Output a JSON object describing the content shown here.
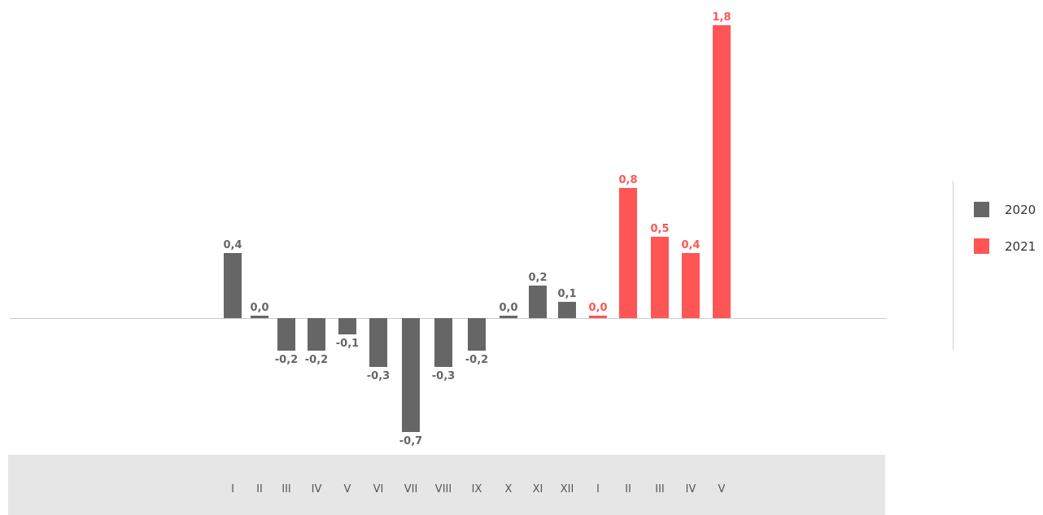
{
  "chart_data": {
    "type": "bar",
    "categories": [
      "I",
      "II",
      "III",
      "IV",
      "V",
      "VI",
      "VII",
      "VIII",
      "IX",
      "X",
      "XI",
      "XII",
      "I",
      "II",
      "III",
      "IV",
      "V"
    ],
    "series": [
      {
        "name": "2020",
        "color": "#666666",
        "values": [
          0.4,
          0.0,
          -0.2,
          -0.2,
          -0.1,
          -0.3,
          -0.7,
          -0.3,
          -0.2,
          0.0,
          0.2,
          0.1,
          null,
          null,
          null,
          null,
          null
        ]
      },
      {
        "name": "2021",
        "color": "#ff5555",
        "values": [
          null,
          null,
          null,
          null,
          null,
          null,
          null,
          null,
          null,
          null,
          null,
          null,
          0.0,
          0.8,
          0.5,
          0.4,
          1.8
        ]
      }
    ],
    "data_labels": [
      "0,4",
      "0,0",
      "-0,2",
      "-0,2",
      "-0,1",
      "-0,3",
      "-0,7",
      "-0,3",
      "-0,2",
      "0,0",
      "0,2",
      "0,1",
      "0,0",
      "0,8",
      "0,5",
      "0,4",
      "1,8"
    ],
    "ylim": [
      -0.8,
      1.8
    ],
    "grid": false,
    "legend_position": "right",
    "axis_band_color": "#e6e6e6",
    "zero_line_color": "#cccccc",
    "title": "",
    "xlabel": "",
    "ylabel": ""
  },
  "legend": {
    "items": [
      {
        "label": "2020",
        "color": "#666666"
      },
      {
        "label": "2021",
        "color": "#ff5555"
      }
    ]
  }
}
